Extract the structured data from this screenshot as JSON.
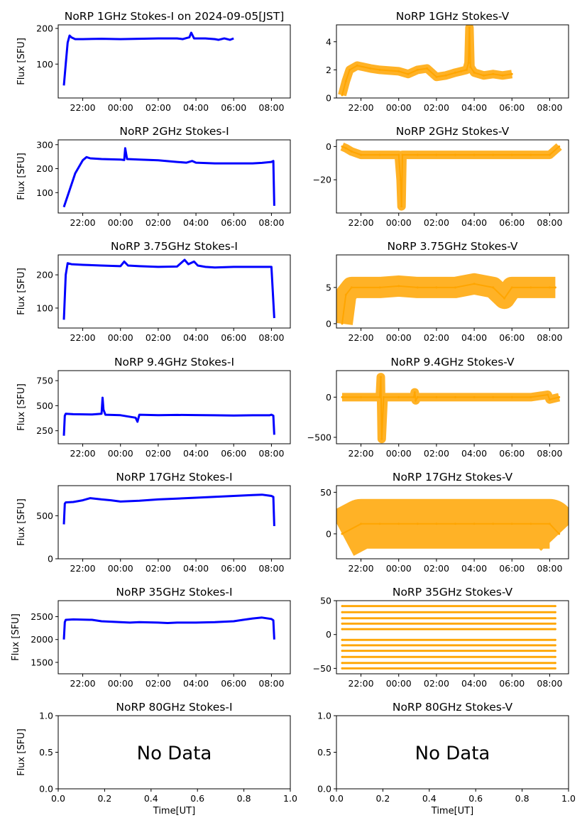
{
  "chart_data": [
    {
      "type": "line",
      "title": "NoRP 1GHz Stokes-I on 2024-09-05[JST]",
      "ylabel": "Flux [SFU]",
      "xlabel": "",
      "xlim": [
        -3.3,
        9.0
      ],
      "ylim": [
        5,
        210
      ],
      "yticks": [
        100,
        200
      ],
      "xticks": [
        "22:00",
        "00:00",
        "02:00",
        "04:00",
        "06:00",
        "08:00"
      ],
      "color": "#0000ff",
      "legend": "none",
      "grid": false,
      "series": [
        {
          "x": [
            -3.0,
            -2.9,
            -2.8,
            -2.7,
            -2.6,
            -2.4,
            -2.0,
            -1.0,
            0.0,
            1.0,
            2.0,
            3.0,
            3.3,
            3.5,
            3.65,
            3.75,
            3.9,
            4.5,
            5.0,
            5.2,
            5.5,
            5.8,
            6.0
          ],
          "y": [
            40,
            100,
            160,
            180,
            175,
            170,
            170,
            171,
            170,
            171,
            172,
            172,
            170,
            173,
            175,
            188,
            172,
            172,
            170,
            168,
            172,
            168,
            172
          ]
        }
      ]
    },
    {
      "type": "scatter",
      "title": "NoRP 1GHz Stokes-V",
      "ylabel": "",
      "xlabel": "",
      "xlim": [
        -3.3,
        9.0
      ],
      "ylim": [
        0,
        5.2
      ],
      "yticks": [
        0,
        2,
        4
      ],
      "xticks": [
        "22:00",
        "00:00",
        "02:00",
        "04:00",
        "06:00",
        "08:00"
      ],
      "color": "#ffa500",
      "legend": "none",
      "grid": false,
      "series": [
        {
          "x": [
            -3.0,
            -2.8,
            -2.6,
            -2.2,
            -1.5,
            -1.0,
            0.0,
            0.5,
            1.0,
            1.5,
            2.0,
            2.5,
            3.0,
            3.3,
            3.6,
            3.7,
            3.75,
            3.8,
            4.0,
            4.5,
            5.0,
            5.5,
            6.0
          ],
          "y": [
            0.2,
            1.2,
            2.0,
            2.3,
            2.1,
            2.0,
            1.9,
            1.7,
            2.0,
            2.1,
            1.5,
            1.6,
            1.8,
            1.9,
            2.0,
            2.5,
            5.0,
            2.2,
            1.8,
            1.6,
            1.7,
            1.6,
            1.7
          ]
        }
      ]
    },
    {
      "type": "line",
      "title": "NoRP 2GHz Stokes-I",
      "ylabel": "Flux [SFU]",
      "xlabel": "",
      "xlim": [
        -3.3,
        9.0
      ],
      "ylim": [
        15,
        320
      ],
      "yticks": [
        100,
        200,
        300
      ],
      "xticks": [
        "22:00",
        "00:00",
        "02:00",
        "04:00",
        "06:00",
        "08:00"
      ],
      "color": "#0000ff",
      "legend": "none",
      "grid": false,
      "series": [
        {
          "x": [
            -3.0,
            -2.7,
            -2.4,
            -2.0,
            -1.8,
            -1.6,
            -1.0,
            0.0,
            0.2,
            0.25,
            0.35,
            1.0,
            2.0,
            3.0,
            3.5,
            3.8,
            4.0,
            5.0,
            6.0,
            7.0,
            7.5,
            8.0,
            8.1,
            8.15
          ],
          "y": [
            40,
            110,
            180,
            235,
            248,
            243,
            240,
            238,
            236,
            285,
            240,
            238,
            235,
            228,
            225,
            232,
            225,
            222,
            222,
            222,
            224,
            228,
            232,
            45
          ]
        }
      ]
    },
    {
      "type": "scatter",
      "title": "NoRP 2GHz Stokes-V",
      "ylabel": "",
      "xlabel": "",
      "xlim": [
        -3.3,
        9.0
      ],
      "ylim": [
        -40,
        4
      ],
      "yticks": [
        0,
        -20
      ],
      "xticks": [
        "22:00",
        "00:00",
        "02:00",
        "04:00",
        "06:00",
        "08:00"
      ],
      "color": "#ffa500",
      "legend": "none",
      "grid": false,
      "series": [
        {
          "x": [
            -3.0,
            -2.8,
            -2.5,
            -2.0,
            -1.0,
            0.0,
            0.1,
            0.15,
            0.2,
            1.0,
            2.0,
            3.0,
            4.0,
            5.0,
            6.0,
            7.0,
            8.0,
            8.5
          ],
          "y": [
            0,
            -1,
            -3,
            -5,
            -5,
            -5,
            -20,
            -36,
            -5,
            -5,
            -5,
            -5,
            -5,
            -5,
            -5,
            -5,
            -5,
            0
          ]
        }
      ]
    },
    {
      "type": "line",
      "title": "NoRP 3.75GHz Stokes-I",
      "ylabel": "Flux [SFU]",
      "xlabel": "",
      "xlim": [
        -3.3,
        9.0
      ],
      "ylim": [
        40,
        260
      ],
      "yticks": [
        100,
        200
      ],
      "xticks": [
        "22:00",
        "00:00",
        "02:00",
        "04:00",
        "06:00",
        "08:00"
      ],
      "color": "#0000ff",
      "legend": "none",
      "grid": false,
      "series": [
        {
          "x": [
            -3.0,
            -2.9,
            -2.8,
            -2.6,
            -2.0,
            -1.0,
            0.0,
            0.2,
            0.4,
            1.0,
            2.0,
            3.0,
            3.4,
            3.6,
            3.9,
            4.1,
            4.5,
            5.0,
            6.0,
            7.0,
            8.0,
            8.15
          ],
          "y": [
            65,
            200,
            235,
            232,
            230,
            228,
            226,
            240,
            228,
            226,
            224,
            225,
            245,
            232,
            240,
            228,
            224,
            222,
            224,
            224,
            224,
            70
          ]
        }
      ]
    },
    {
      "type": "scatter",
      "title": "NoRP 3.75GHz Stokes-V",
      "ylabel": "",
      "xlabel": "",
      "xlim": [
        -3.3,
        9.0
      ],
      "ylim": [
        -0.6,
        9.5
      ],
      "yticks": [
        0,
        5
      ],
      "xticks": [
        "22:00",
        "00:00",
        "02:00",
        "04:00",
        "06:00",
        "08:00"
      ],
      "color": "#ffa500",
      "legend": "none",
      "grid": false,
      "series": [
        {
          "x": [
            -3.0,
            -2.8,
            -2.5,
            -1.0,
            0.0,
            1.0,
            2.0,
            3.0,
            4.0,
            5.0,
            5.6,
            6.0,
            7.0,
            8.0,
            8.3
          ],
          "y": [
            0,
            4,
            5,
            5,
            5.2,
            5,
            5,
            5,
            5.5,
            5,
            3.5,
            5,
            5,
            5,
            5
          ]
        }
      ]
    },
    {
      "type": "line",
      "title": "NoRP 9.4GHz Stokes-I",
      "ylabel": "Flux [SFU]",
      "xlabel": "",
      "xlim": [
        -3.3,
        9.0
      ],
      "ylim": [
        120,
        850
      ],
      "yticks": [
        250,
        500,
        750
      ],
      "xticks": [
        "22:00",
        "00:00",
        "02:00",
        "04:00",
        "06:00",
        "08:00"
      ],
      "color": "#0000ff",
      "legend": "none",
      "grid": false,
      "series": [
        {
          "x": [
            -3.0,
            -2.95,
            -2.9,
            -2.5,
            -1.5,
            -1.0,
            -0.95,
            -0.9,
            -0.8,
            0.0,
            0.8,
            0.9,
            1.0,
            2.0,
            3.0,
            4.0,
            5.0,
            6.0,
            7.0,
            7.9,
            8.0,
            8.1,
            8.15
          ],
          "y": [
            200,
            400,
            420,
            415,
            412,
            420,
            580,
            460,
            410,
            405,
            380,
            340,
            410,
            405,
            408,
            406,
            404,
            402,
            404,
            404,
            410,
            400,
            210
          ]
        }
      ]
    },
    {
      "type": "scatter",
      "title": "NoRP 9.4GHz Stokes-V",
      "ylabel": "",
      "xlabel": "",
      "xlim": [
        -3.3,
        9.0
      ],
      "ylim": [
        -580,
        330
      ],
      "yticks": [
        0,
        -500
      ],
      "xticks": [
        "22:00",
        "00:00",
        "02:00",
        "04:00",
        "06:00",
        "08:00"
      ],
      "color": "#ffa500",
      "legend": "none",
      "grid": false,
      "series": [
        {
          "x": [
            -3.0,
            -2.0,
            -1.0,
            -0.95,
            -0.9,
            -0.8,
            0.0,
            0.8,
            0.85,
            0.9,
            1.0,
            2.0,
            3.0,
            4.0,
            5.0,
            6.0,
            7.0,
            7.9,
            8.0,
            8.5
          ],
          "y": [
            0,
            0,
            0,
            250,
            -520,
            0,
            0,
            0,
            60,
            -40,
            0,
            0,
            0,
            0,
            0,
            0,
            0,
            30,
            -30,
            0
          ]
        }
      ]
    },
    {
      "type": "line",
      "title": "NoRP 17GHz Stokes-I",
      "ylabel": "Flux [SFU]",
      "xlabel": "",
      "xlim": [
        -3.3,
        9.0
      ],
      "ylim": [
        0,
        850
      ],
      "yticks": [
        0,
        500
      ],
      "xticks": [
        "22:00",
        "00:00",
        "02:00",
        "04:00",
        "06:00",
        "08:00"
      ],
      "color": "#0000ff",
      "legend": "none",
      "grid": false,
      "series": [
        {
          "x": [
            -3.0,
            -2.95,
            -2.9,
            -2.5,
            -2.0,
            -1.6,
            -1.0,
            -0.5,
            0.0,
            1.0,
            2.0,
            3.0,
            4.0,
            5.0,
            6.0,
            7.0,
            7.5,
            8.0,
            8.1,
            8.15
          ],
          "y": [
            400,
            640,
            655,
            660,
            680,
            705,
            690,
            680,
            665,
            675,
            690,
            700,
            710,
            720,
            730,
            740,
            745,
            730,
            720,
            380
          ]
        }
      ]
    },
    {
      "type": "scatter",
      "title": "NoRP 17GHz Stokes-V",
      "ylabel": "",
      "xlabel": "",
      "xlim": [
        -3.3,
        9.0
      ],
      "ylim": [
        -30,
        58
      ],
      "yticks": [
        0,
        50
      ],
      "xticks": [
        "22:00",
        "00:00",
        "02:00",
        "04:00",
        "06:00",
        "08:00"
      ],
      "color": "#ffa500",
      "legend": "none",
      "grid": false,
      "series": [
        {
          "x": [
            -3.0,
            -2.0,
            -1.0,
            0.0,
            1.0,
            2.0,
            3.0,
            4.0,
            5.0,
            6.0,
            7.0,
            8.0,
            8.5
          ],
          "y": [
            0,
            12,
            12,
            12,
            12,
            12,
            12,
            12,
            12,
            12,
            12,
            12,
            0
          ]
        }
      ]
    },
    {
      "type": "line",
      "title": "NoRP 35GHz Stokes-I",
      "ylabel": "Flux [SFU]",
      "xlabel": "",
      "xlim": [
        -3.3,
        9.0
      ],
      "ylim": [
        1250,
        2850
      ],
      "yticks": [
        1500,
        2000,
        2500
      ],
      "xticks": [
        "22:00",
        "00:00",
        "02:00",
        "04:00",
        "06:00",
        "08:00"
      ],
      "color": "#0000ff",
      "legend": "none",
      "grid": false,
      "series": [
        {
          "x": [
            -3.0,
            -2.95,
            -2.9,
            -2.5,
            -1.5,
            -1.0,
            0.0,
            0.5,
            1.0,
            2.0,
            2.5,
            3.0,
            4.0,
            5.0,
            6.0,
            6.5,
            7.0,
            7.5,
            8.0,
            8.1,
            8.15
          ],
          "y": [
            2000,
            2380,
            2430,
            2440,
            2430,
            2400,
            2380,
            2370,
            2380,
            2370,
            2360,
            2370,
            2370,
            2380,
            2400,
            2430,
            2460,
            2480,
            2450,
            2420,
            2000
          ]
        }
      ]
    },
    {
      "type": "scatter",
      "title": "NoRP 35GHz Stokes-V",
      "ylabel": "",
      "xlabel": "",
      "xlim": [
        -3.3,
        9.0
      ],
      "ylim": [
        -58,
        50
      ],
      "yticks": [
        50,
        0,
        -50
      ],
      "xticks": [
        "22:00",
        "00:00",
        "02:00",
        "04:00",
        "06:00",
        "08:00"
      ],
      "color": "#ffa500",
      "legend": "none",
      "grid": false,
      "series": [
        {
          "x": [
            -3.0,
            8.3
          ],
          "y": [
            42,
            42
          ]
        },
        {
          "x": [
            -3.0,
            8.3
          ],
          "y": [
            33,
            33
          ]
        },
        {
          "x": [
            -3.0,
            8.3
          ],
          "y": [
            24,
            24
          ]
        },
        {
          "x": [
            -3.0,
            8.3
          ],
          "y": [
            16,
            16
          ]
        },
        {
          "x": [
            -3.0,
            8.3
          ],
          "y": [
            8,
            8
          ]
        },
        {
          "x": [
            -3.0,
            8.3
          ],
          "y": [
            -8,
            -8
          ]
        },
        {
          "x": [
            -3.0,
            8.3
          ],
          "y": [
            -16,
            -16
          ]
        },
        {
          "x": [
            -3.0,
            8.3
          ],
          "y": [
            -24,
            -24
          ]
        },
        {
          "x": [
            -3.0,
            8.3
          ],
          "y": [
            -33,
            -33
          ]
        },
        {
          "x": [
            -3.0,
            8.3
          ],
          "y": [
            -42,
            -42
          ]
        },
        {
          "x": [
            -3.0,
            8.3
          ],
          "y": [
            -50,
            -50
          ]
        }
      ]
    },
    {
      "type": "line",
      "title": "NoRP 80GHz Stokes-I",
      "ylabel": "Flux [SFU]",
      "xlabel": "Time[UT]",
      "xlim": [
        0,
        1
      ],
      "ylim": [
        0,
        1
      ],
      "yticks": [
        "0.0",
        "0.5",
        "1.0"
      ],
      "xticks": [
        "0.0",
        "0.2",
        "0.4",
        "0.6",
        "0.8",
        "1.0"
      ],
      "annotation": "No Data",
      "legend": "none",
      "grid": false,
      "series": []
    },
    {
      "type": "line",
      "title": "NoRP 80GHz Stokes-V",
      "ylabel": "",
      "xlabel": "Time[UT]",
      "xlim": [
        0,
        1
      ],
      "ylim": [
        0,
        1
      ],
      "yticks": [
        "0.0",
        "0.5",
        "1.0"
      ],
      "xticks": [
        "0.0",
        "0.2",
        "0.4",
        "0.6",
        "0.8",
        "1.0"
      ],
      "annotation": "No Data",
      "legend": "none",
      "grid": false,
      "series": []
    }
  ]
}
